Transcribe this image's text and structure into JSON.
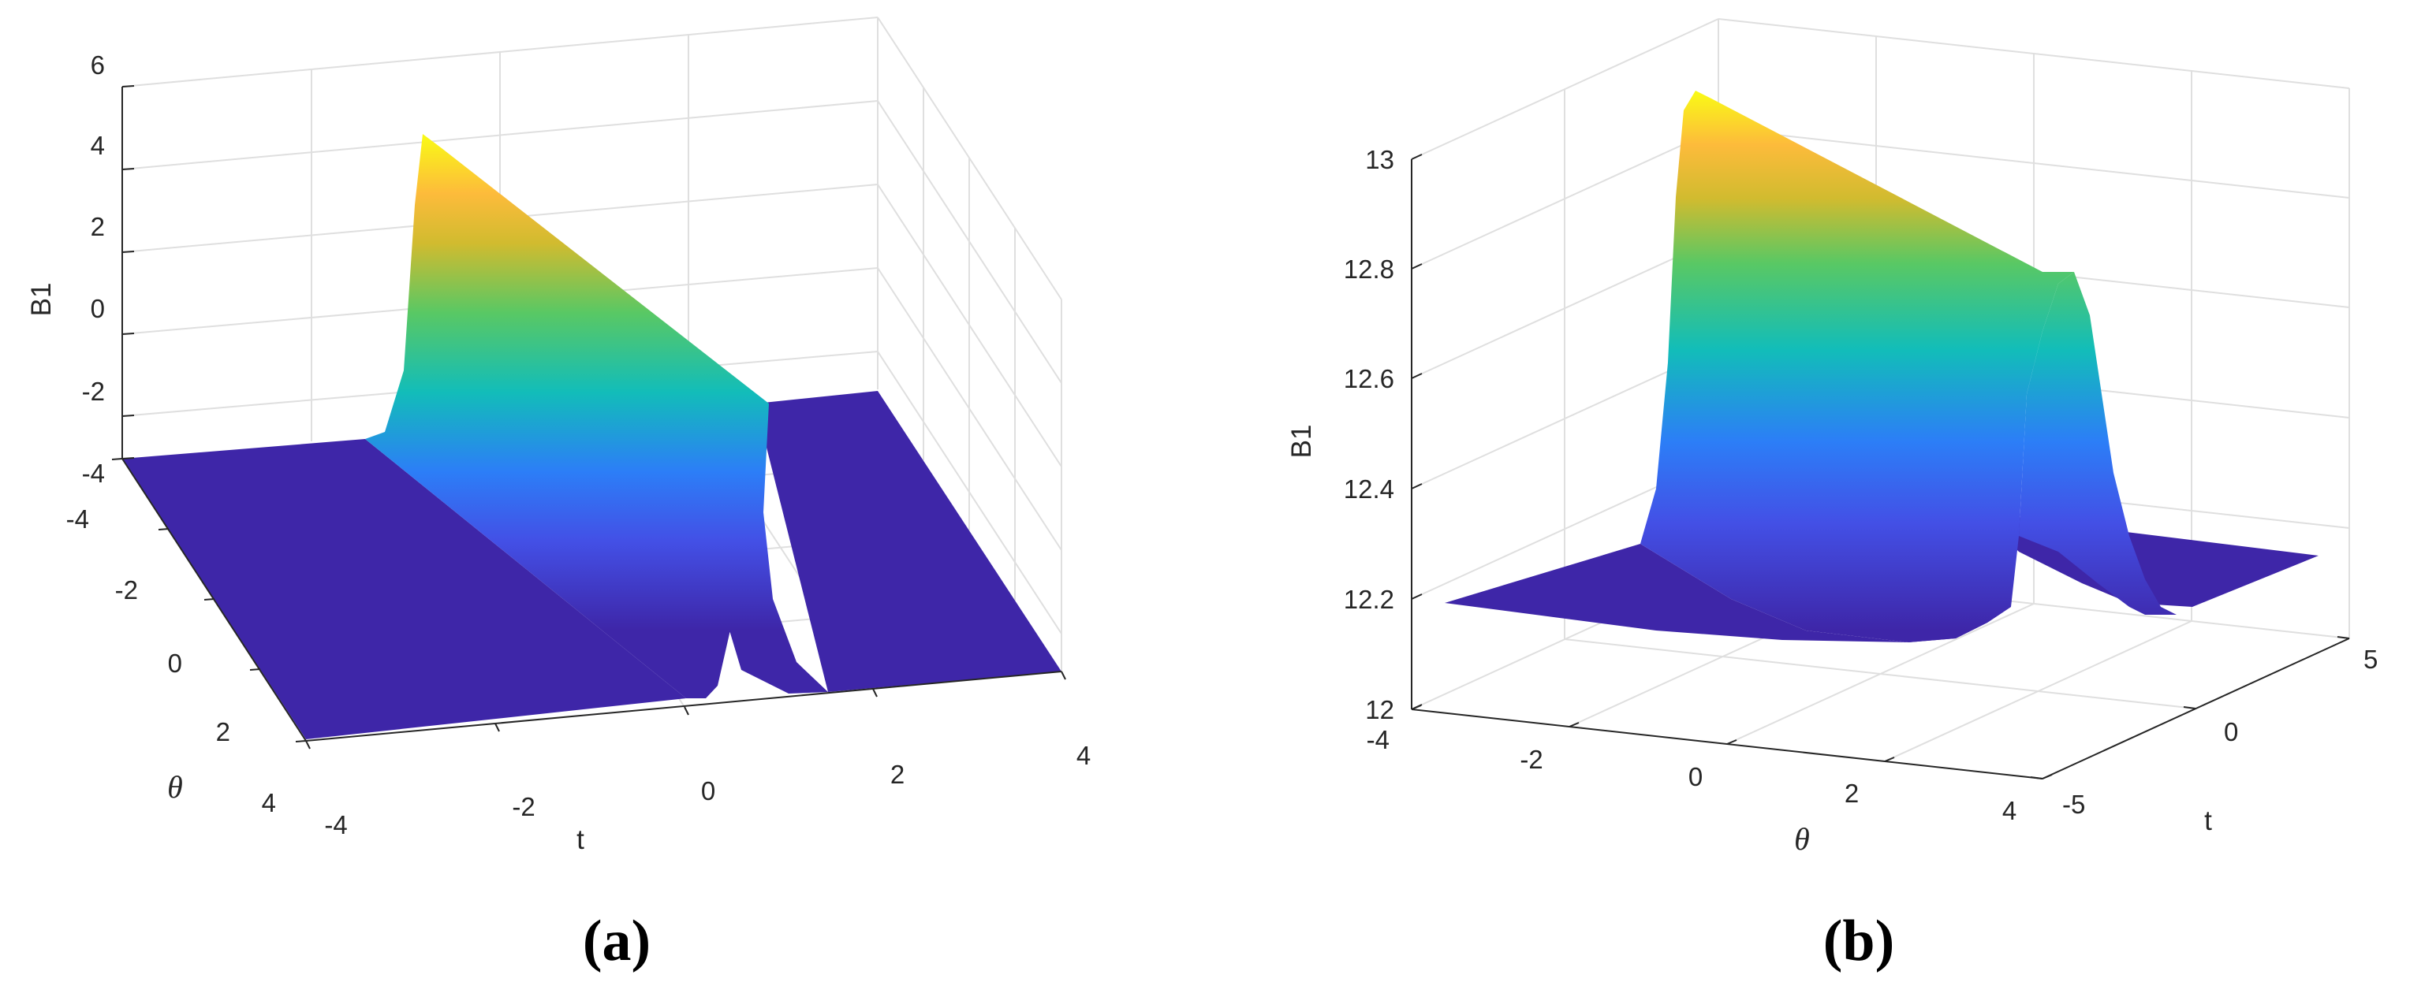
{
  "chart_data": [
    {
      "type": "surface",
      "caption": "(a)",
      "zlabel": "B1",
      "xlabel": "t",
      "ylabel": "θ",
      "x_ticks": [
        "-4",
        "-2",
        "0",
        "2",
        "4"
      ],
      "y_ticks": [
        "-4",
        "-2",
        "0",
        "2",
        "4"
      ],
      "z_ticks": [
        "-4",
        "-2",
        "0",
        "2",
        "4",
        "6"
      ],
      "xlim": [
        -4,
        4
      ],
      "ylim": [
        -4,
        4
      ],
      "zlim": [
        -4,
        6
      ],
      "grid": true,
      "colormap": "parula",
      "surface": {
        "base": -3.4,
        "peak": 5.3,
        "ridge": "line across the t–θ plane"
      }
    },
    {
      "type": "surface",
      "caption": "(b)",
      "zlabel": "B1",
      "xlabel": "θ",
      "ylabel": "t",
      "x_ticks": [
        "-4",
        "-2",
        "0",
        "2",
        "4"
      ],
      "y_ticks": [
        "-5",
        "0",
        "5"
      ],
      "z_ticks": [
        "12",
        "12.2",
        "12.4",
        "12.6",
        "12.8",
        "13"
      ],
      "xlim": [
        -4,
        4
      ],
      "ylim": [
        -5,
        5
      ],
      "zlim": [
        12,
        13
      ],
      "grid": true,
      "colormap": "parula",
      "surface": {
        "base": 12.12,
        "peak": 13.13,
        "ridge": "line across the θ–t plane"
      }
    }
  ],
  "colors": {
    "parula_low": "#3e26a8",
    "parula_mid": "#12bdb9",
    "parula_high": "#f9fb15",
    "background": "#ffffff"
  }
}
